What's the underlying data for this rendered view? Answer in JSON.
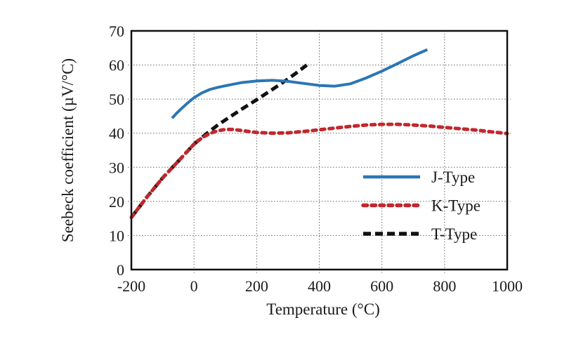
{
  "page": {
    "background": "#ffffff"
  },
  "chart_data": {
    "type": "line",
    "title": "",
    "xlabel": "Temperature (°C)",
    "ylabel": "Seebeck coefficient (µV/°C)",
    "xlim": [
      -200,
      1000
    ],
    "ylim": [
      0,
      70
    ],
    "xticks": [
      -200,
      0,
      200,
      400,
      600,
      800,
      1000
    ],
    "yticks": [
      0,
      10,
      20,
      30,
      40,
      50,
      60,
      70
    ],
    "grid": true,
    "grid_style": "dotted",
    "grid_color": "#666666",
    "axis_color": "#111111",
    "legend_position": "inside-right-middle",
    "series": [
      {
        "name": "J-Type",
        "color": "#2b76b5",
        "line_style": "solid",
        "width": 4,
        "points": [
          [
            -70,
            44.4
          ],
          [
            -55,
            45.9
          ],
          [
            -40,
            47.2
          ],
          [
            -20,
            48.9
          ],
          [
            0,
            50.4
          ],
          [
            25,
            51.8
          ],
          [
            50,
            52.8
          ],
          [
            75,
            53.4
          ],
          [
            100,
            53.9
          ],
          [
            150,
            54.8
          ],
          [
            200,
            55.3
          ],
          [
            250,
            55.5
          ],
          [
            300,
            55.2
          ],
          [
            350,
            54.6
          ],
          [
            400,
            54.0
          ],
          [
            450,
            53.8
          ],
          [
            500,
            54.5
          ],
          [
            550,
            56.2
          ],
          [
            600,
            58.2
          ],
          [
            650,
            60.4
          ],
          [
            700,
            62.7
          ],
          [
            745,
            64.5
          ]
        ]
      },
      {
        "name": "K-Type",
        "color": "#c1272d",
        "line_style": "dotted",
        "width": 5,
        "points": [
          [
            -200,
            15.3
          ],
          [
            -150,
            21.3
          ],
          [
            -100,
            26.9
          ],
          [
            -50,
            31.8
          ],
          [
            0,
            36.8
          ],
          [
            25,
            38.6
          ],
          [
            50,
            39.9
          ],
          [
            75,
            40.7
          ],
          [
            100,
            41.1
          ],
          [
            125,
            41.1
          ],
          [
            150,
            40.8
          ],
          [
            200,
            40.2
          ],
          [
            250,
            40.0
          ],
          [
            300,
            40.1
          ],
          [
            350,
            40.5
          ],
          [
            400,
            41.0
          ],
          [
            450,
            41.5
          ],
          [
            500,
            42.0
          ],
          [
            550,
            42.4
          ],
          [
            600,
            42.6
          ],
          [
            650,
            42.6
          ],
          [
            700,
            42.4
          ],
          [
            750,
            42.1
          ],
          [
            800,
            41.7
          ],
          [
            850,
            41.3
          ],
          [
            900,
            40.9
          ],
          [
            950,
            40.4
          ],
          [
            1000,
            39.9
          ]
        ]
      },
      {
        "name": "T-Type",
        "color": "#111111",
        "line_style": "dashed",
        "width": 5,
        "points": [
          [
            -200,
            15.3
          ],
          [
            -150,
            21.3
          ],
          [
            -100,
            26.9
          ],
          [
            -50,
            31.8
          ],
          [
            0,
            36.8
          ],
          [
            25,
            38.7
          ],
          [
            50,
            40.6
          ],
          [
            75,
            42.3
          ],
          [
            100,
            43.9
          ],
          [
            150,
            46.9
          ],
          [
            200,
            49.8
          ],
          [
            250,
            52.8
          ],
          [
            300,
            55.9
          ],
          [
            330,
            57.9
          ],
          [
            360,
            60.0
          ]
        ]
      }
    ]
  }
}
